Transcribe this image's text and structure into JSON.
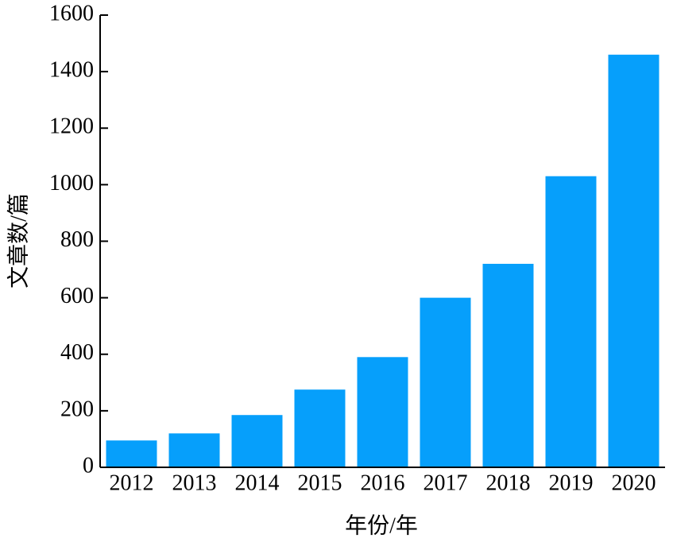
{
  "chart_data": {
    "type": "bar",
    "x_label": "年份/年",
    "y_label": "文章数/篇",
    "categories": [
      "2012",
      "2013",
      "2014",
      "2015",
      "2016",
      "2017",
      "2018",
      "2019",
      "2020"
    ],
    "values": [
      95,
      120,
      185,
      275,
      390,
      600,
      720,
      1030,
      1460
    ],
    "color": "#069ffb",
    "ylim": [
      0,
      1600
    ],
    "yticks": [
      0,
      200,
      400,
      600,
      800,
      1000,
      1200,
      1400,
      1600
    ],
    "grid": false
  }
}
